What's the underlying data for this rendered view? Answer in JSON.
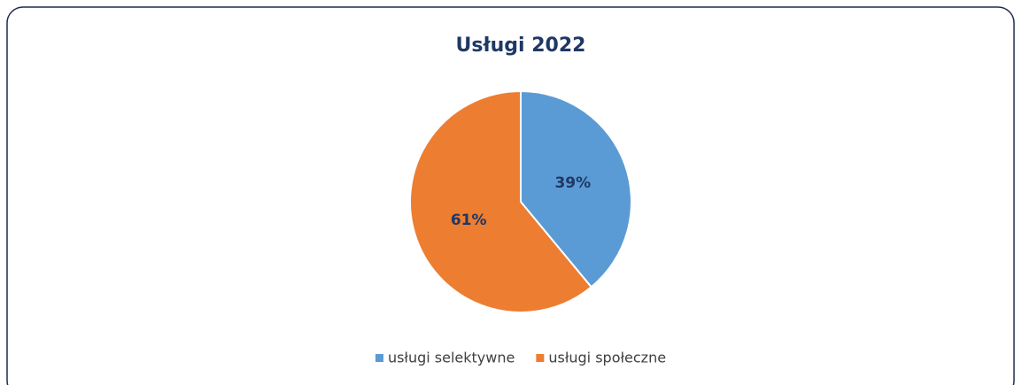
{
  "chart_data": {
    "type": "pie",
    "title": "Usługi 2022",
    "categories": [
      "usługi selektywne",
      "usługi społeczne"
    ],
    "values": [
      39,
      61
    ],
    "value_labels": [
      "39%",
      "61%"
    ],
    "colors": [
      "#5b9bd5",
      "#ed7d31"
    ],
    "legend": "bottom"
  }
}
